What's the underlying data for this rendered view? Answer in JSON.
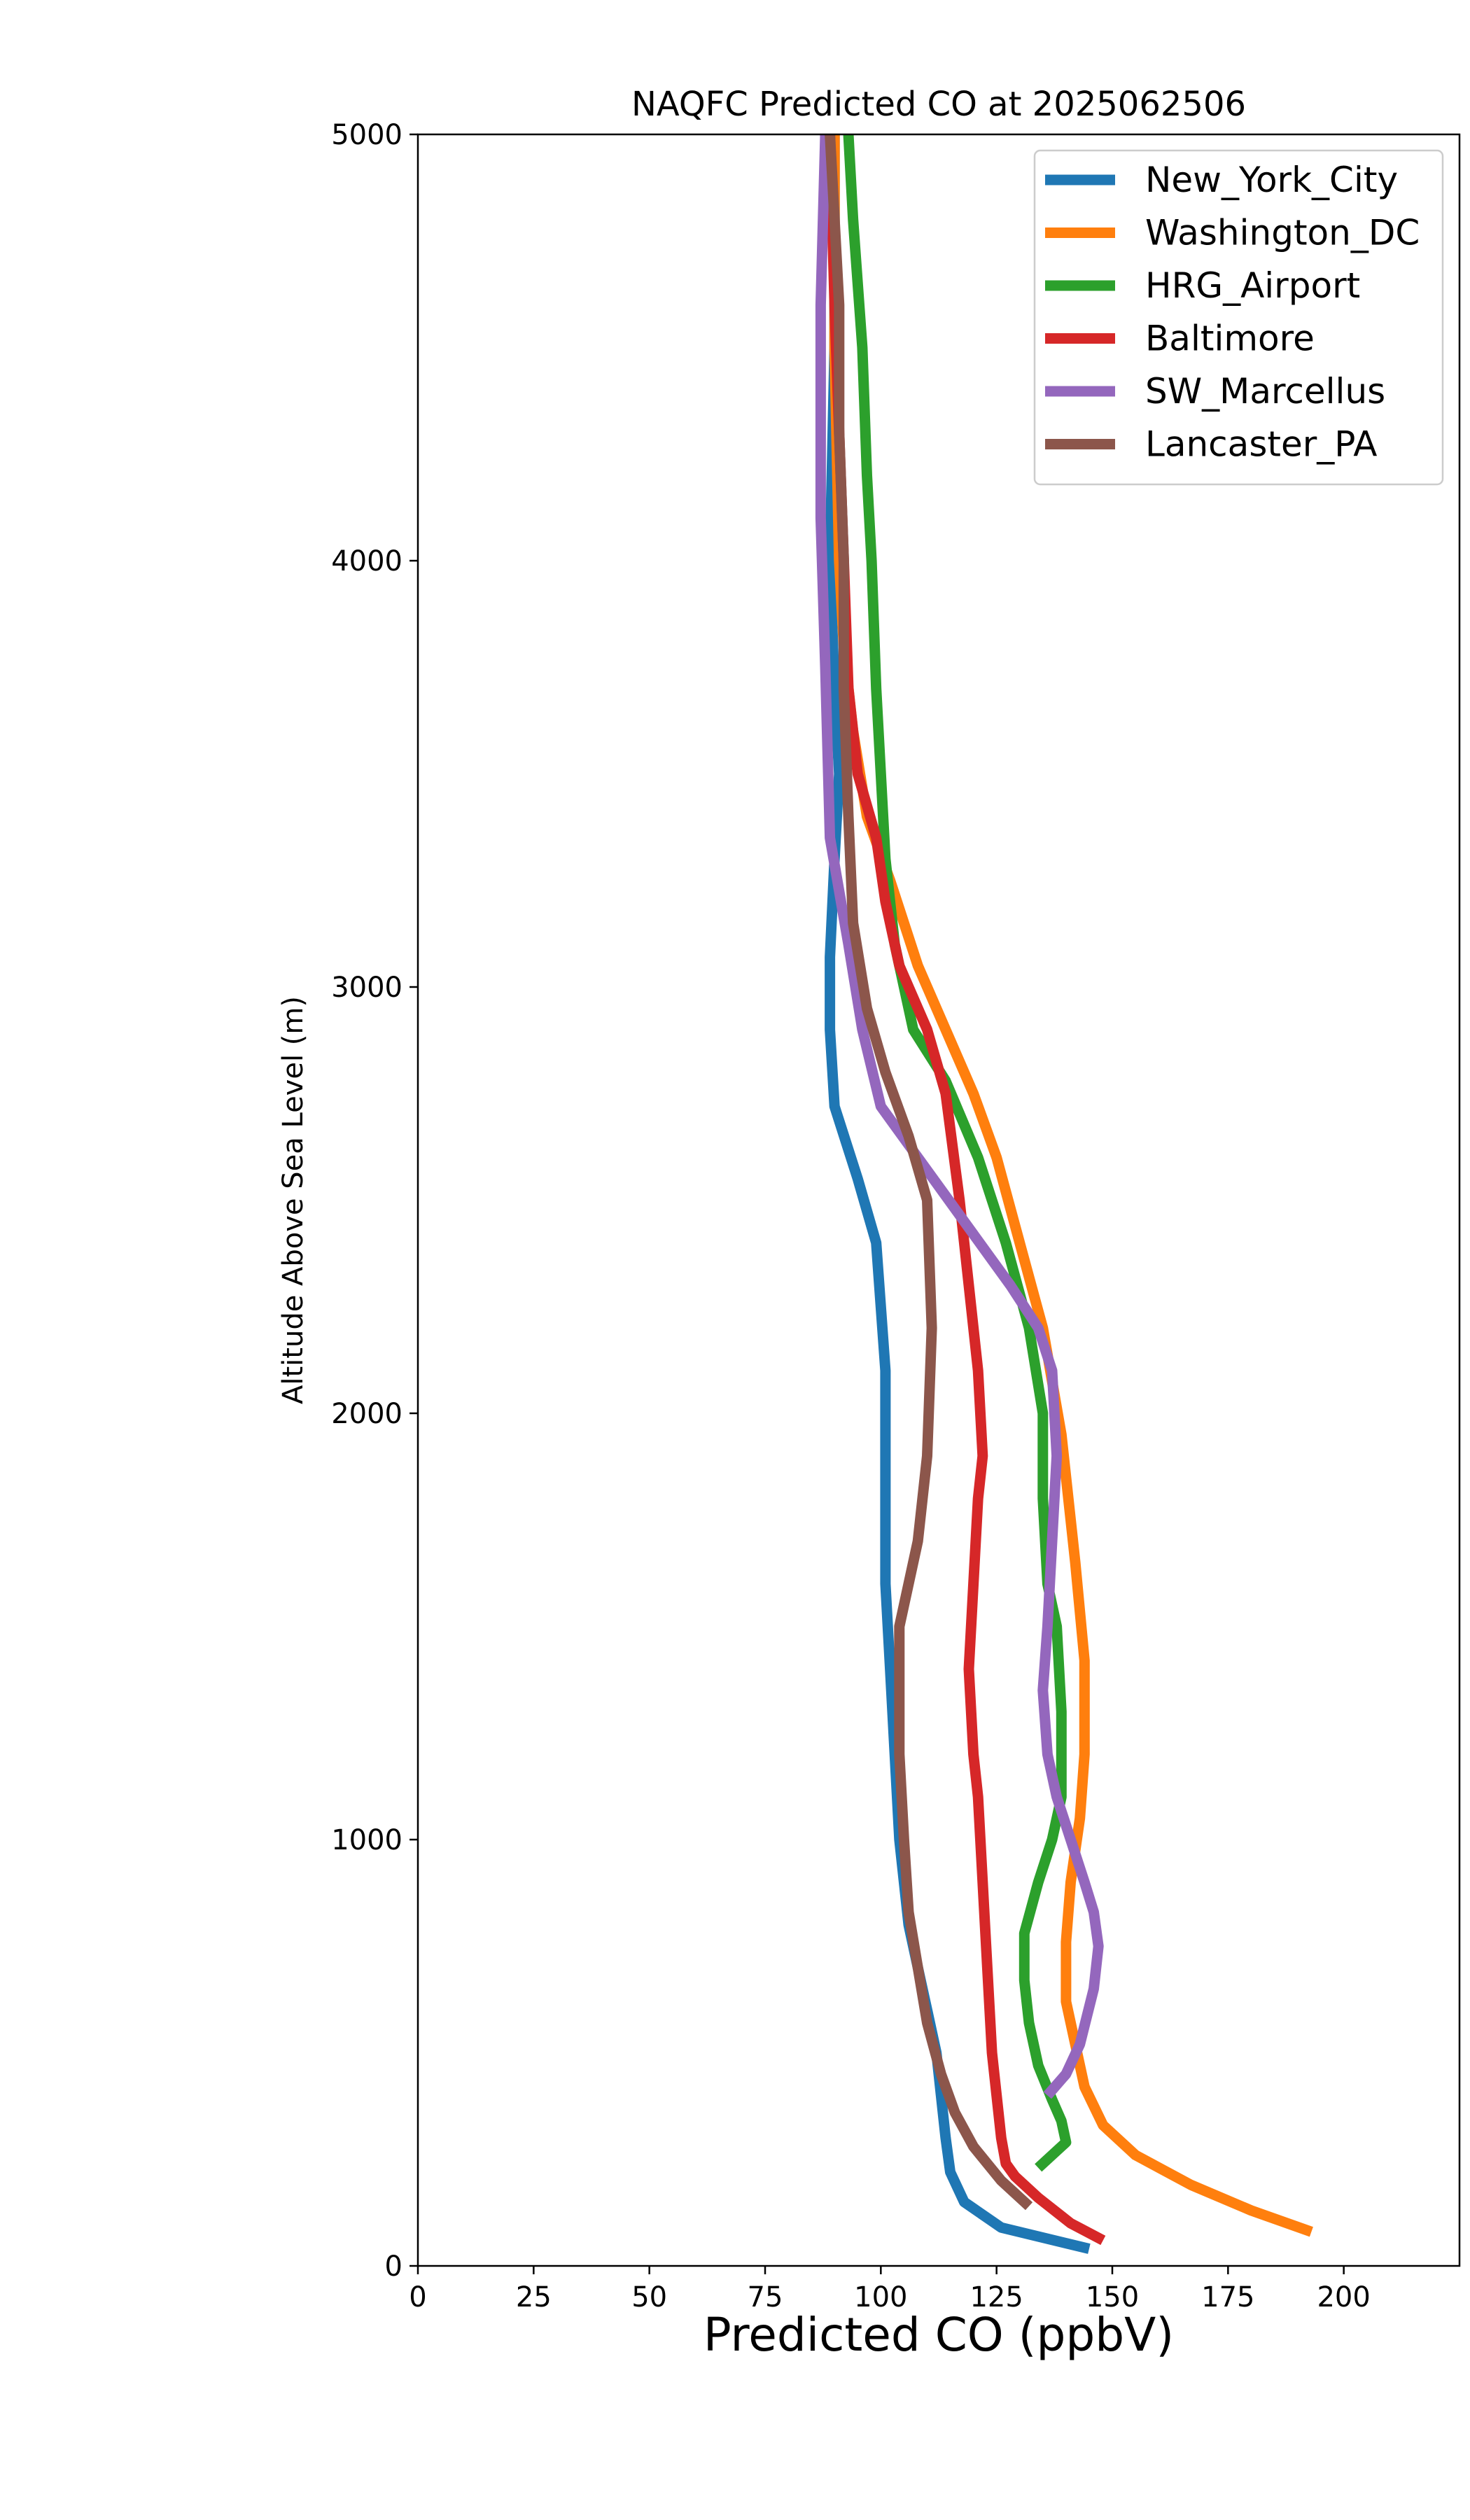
{
  "chart_data": {
    "type": "line",
    "title": "NAQFC Predicted CO at 2025062506",
    "xlabel": "Predicted CO (ppbV)",
    "ylabel": "Altitude Above Sea Level (m)",
    "xlim": [
      0,
      225
    ],
    "ylim": [
      0,
      5000
    ],
    "xticks": [
      0,
      25,
      50,
      75,
      100,
      125,
      150,
      175,
      200
    ],
    "yticks": [
      0,
      1000,
      2000,
      3000,
      4000,
      5000
    ],
    "grid": false,
    "legend_position": "top-right",
    "series": [
      {
        "name": "New_York_City",
        "color": "#1f77b4",
        "points": [
          [
            145,
            40
          ],
          [
            126,
            90
          ],
          [
            118,
            150
          ],
          [
            115,
            220
          ],
          [
            114,
            300
          ],
          [
            113,
            400
          ],
          [
            112,
            500
          ],
          [
            110,
            600
          ],
          [
            108,
            700
          ],
          [
            106,
            800
          ],
          [
            105,
            900
          ],
          [
            104,
            1000
          ],
          [
            103,
            1200
          ],
          [
            102,
            1400
          ],
          [
            101,
            1600
          ],
          [
            101,
            1800
          ],
          [
            101,
            2000
          ],
          [
            101,
            2100
          ],
          [
            99,
            2400
          ],
          [
            95,
            2550
          ],
          [
            90,
            2720
          ],
          [
            89,
            2900
          ],
          [
            89,
            3070
          ],
          [
            90,
            3300
          ],
          [
            91,
            3500
          ],
          [
            90,
            3700
          ],
          [
            89,
            4000
          ],
          [
            90,
            4500
          ],
          [
            90,
            5000
          ]
        ]
      },
      {
        "name": "Washington_DC",
        "color": "#ff7f0e",
        "points": [
          [
            193,
            80
          ],
          [
            180,
            130
          ],
          [
            167,
            190
          ],
          [
            155,
            260
          ],
          [
            148,
            330
          ],
          [
            144,
            420
          ],
          [
            142,
            520
          ],
          [
            140,
            620
          ],
          [
            140,
            760
          ],
          [
            141,
            900
          ],
          [
            143,
            1050
          ],
          [
            144,
            1200
          ],
          [
            144,
            1420
          ],
          [
            142,
            1650
          ],
          [
            139,
            1950
          ],
          [
            135,
            2200
          ],
          [
            130,
            2400
          ],
          [
            125,
            2600
          ],
          [
            120,
            2750
          ],
          [
            114,
            2900
          ],
          [
            108,
            3050
          ],
          [
            102,
            3250
          ],
          [
            97,
            3400
          ],
          [
            94,
            3600
          ],
          [
            92,
            3800
          ],
          [
            91,
            4000
          ],
          [
            90,
            4500
          ],
          [
            90,
            5000
          ]
        ]
      },
      {
        "name": "HRG_Airport",
        "color": "#2ca02c",
        "points": [
          [
            134,
            230
          ],
          [
            140,
            290
          ],
          [
            139,
            340
          ],
          [
            137,
            390
          ],
          [
            134,
            470
          ],
          [
            132,
            570
          ],
          [
            131,
            670
          ],
          [
            131,
            780
          ],
          [
            134,
            900
          ],
          [
            137,
            1000
          ],
          [
            139,
            1100
          ],
          [
            139,
            1300
          ],
          [
            138,
            1500
          ],
          [
            136,
            1600
          ],
          [
            135,
            1800
          ],
          [
            135,
            2000
          ],
          [
            132,
            2200
          ],
          [
            127,
            2400
          ],
          [
            121,
            2600
          ],
          [
            114,
            2780
          ],
          [
            107,
            2900
          ],
          [
            103,
            3100
          ],
          [
            101,
            3300
          ],
          [
            100,
            3500
          ],
          [
            99,
            3700
          ],
          [
            98,
            4000
          ],
          [
            97,
            4200
          ],
          [
            96,
            4500
          ],
          [
            94,
            4800
          ],
          [
            93,
            5000
          ]
        ]
      },
      {
        "name": "Baltimore",
        "color": "#d62728",
        "points": [
          [
            148,
            60
          ],
          [
            141,
            100
          ],
          [
            134,
            160
          ],
          [
            129,
            210
          ],
          [
            127,
            240
          ],
          [
            126,
            300
          ],
          [
            125,
            400
          ],
          [
            124,
            500
          ],
          [
            123,
            700
          ],
          [
            122,
            900
          ],
          [
            121,
            1100
          ],
          [
            120,
            1200
          ],
          [
            119,
            1400
          ],
          [
            120,
            1600
          ],
          [
            121,
            1800
          ],
          [
            122,
            1900
          ],
          [
            121,
            2100
          ],
          [
            119,
            2300
          ],
          [
            117,
            2500
          ],
          [
            114,
            2750
          ],
          [
            110,
            2900
          ],
          [
            104,
            3050
          ],
          [
            101,
            3200
          ],
          [
            99,
            3350
          ],
          [
            95,
            3500
          ],
          [
            93,
            3700
          ],
          [
            92,
            4000
          ],
          [
            91,
            4300
          ],
          [
            90,
            4600
          ],
          [
            89,
            5000
          ]
        ]
      },
      {
        "name": "SW_Marcellus",
        "color": "#9467bd",
        "points": [
          [
            136,
            400
          ],
          [
            140,
            450
          ],
          [
            143,
            520
          ],
          [
            146,
            650
          ],
          [
            147,
            750
          ],
          [
            146,
            830
          ],
          [
            144,
            900
          ],
          [
            141,
            1000
          ],
          [
            138,
            1100
          ],
          [
            136,
            1200
          ],
          [
            135,
            1350
          ],
          [
            136,
            1500
          ],
          [
            137,
            1700
          ],
          [
            138,
            1900
          ],
          [
            137,
            2100
          ],
          [
            134,
            2200
          ],
          [
            128,
            2300
          ],
          [
            120,
            2420
          ],
          [
            110,
            2570
          ],
          [
            100,
            2720
          ],
          [
            96,
            2900
          ],
          [
            93,
            3100
          ],
          [
            89,
            3350
          ],
          [
            88,
            3750
          ],
          [
            87,
            4100
          ],
          [
            87,
            4600
          ],
          [
            88,
            5000
          ]
        ]
      },
      {
        "name": "Lancaster_PA",
        "color": "#8c564b",
        "points": [
          [
            132,
            140
          ],
          [
            126,
            200
          ],
          [
            120,
            280
          ],
          [
            116,
            360
          ],
          [
            113,
            450
          ],
          [
            110,
            570
          ],
          [
            108,
            700
          ],
          [
            106,
            830
          ],
          [
            105,
            1000
          ],
          [
            104,
            1200
          ],
          [
            104,
            1400
          ],
          [
            104,
            1500
          ],
          [
            108,
            1700
          ],
          [
            110,
            1900
          ],
          [
            111,
            2200
          ],
          [
            110,
            2500
          ],
          [
            106,
            2650
          ],
          [
            101,
            2800
          ],
          [
            97,
            2950
          ],
          [
            94,
            3150
          ],
          [
            93,
            3400
          ],
          [
            92,
            3700
          ],
          [
            92,
            4000
          ],
          [
            91,
            4300
          ],
          [
            91,
            4600
          ],
          [
            89,
            5000
          ]
        ]
      }
    ]
  }
}
